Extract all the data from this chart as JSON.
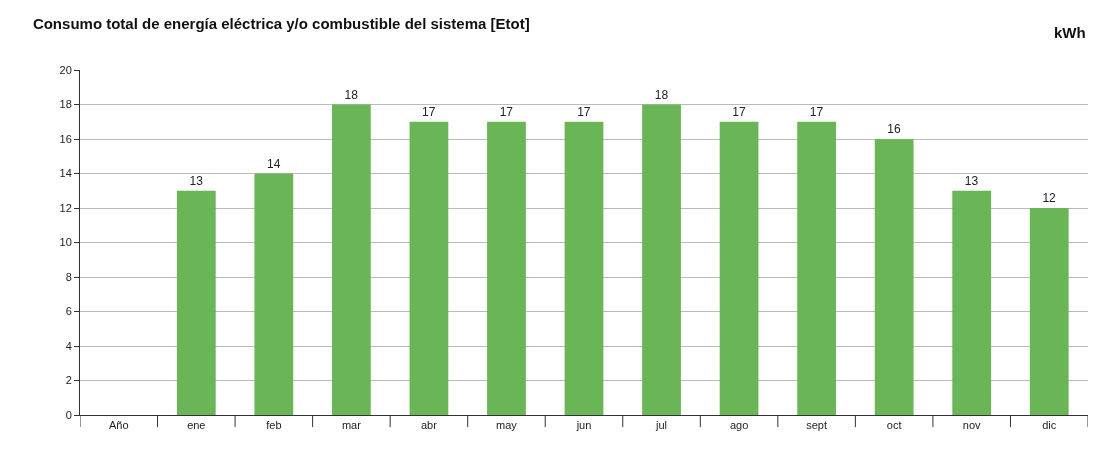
{
  "chart_data": {
    "type": "bar",
    "title": "Consumo total de energía eléctrica y/o combustible del sistema [Etot]",
    "annotations": [
      "kWh"
    ],
    "categories": [
      "Año",
      "ene",
      "feb",
      "mar",
      "abr",
      "may",
      "jun",
      "jul",
      "ago",
      "sept",
      "oct",
      "nov",
      "dic"
    ],
    "values": [
      null,
      13,
      14,
      18,
      17,
      17,
      17,
      18,
      17,
      17,
      16,
      13,
      12
    ],
    "color": "#6ab657",
    "ylim": [
      0,
      20
    ],
    "yticks": [
      0,
      2,
      4,
      6,
      8,
      10,
      12,
      14,
      16,
      18,
      20
    ],
    "grid": "y",
    "data_labels": true,
    "legend": false
  }
}
